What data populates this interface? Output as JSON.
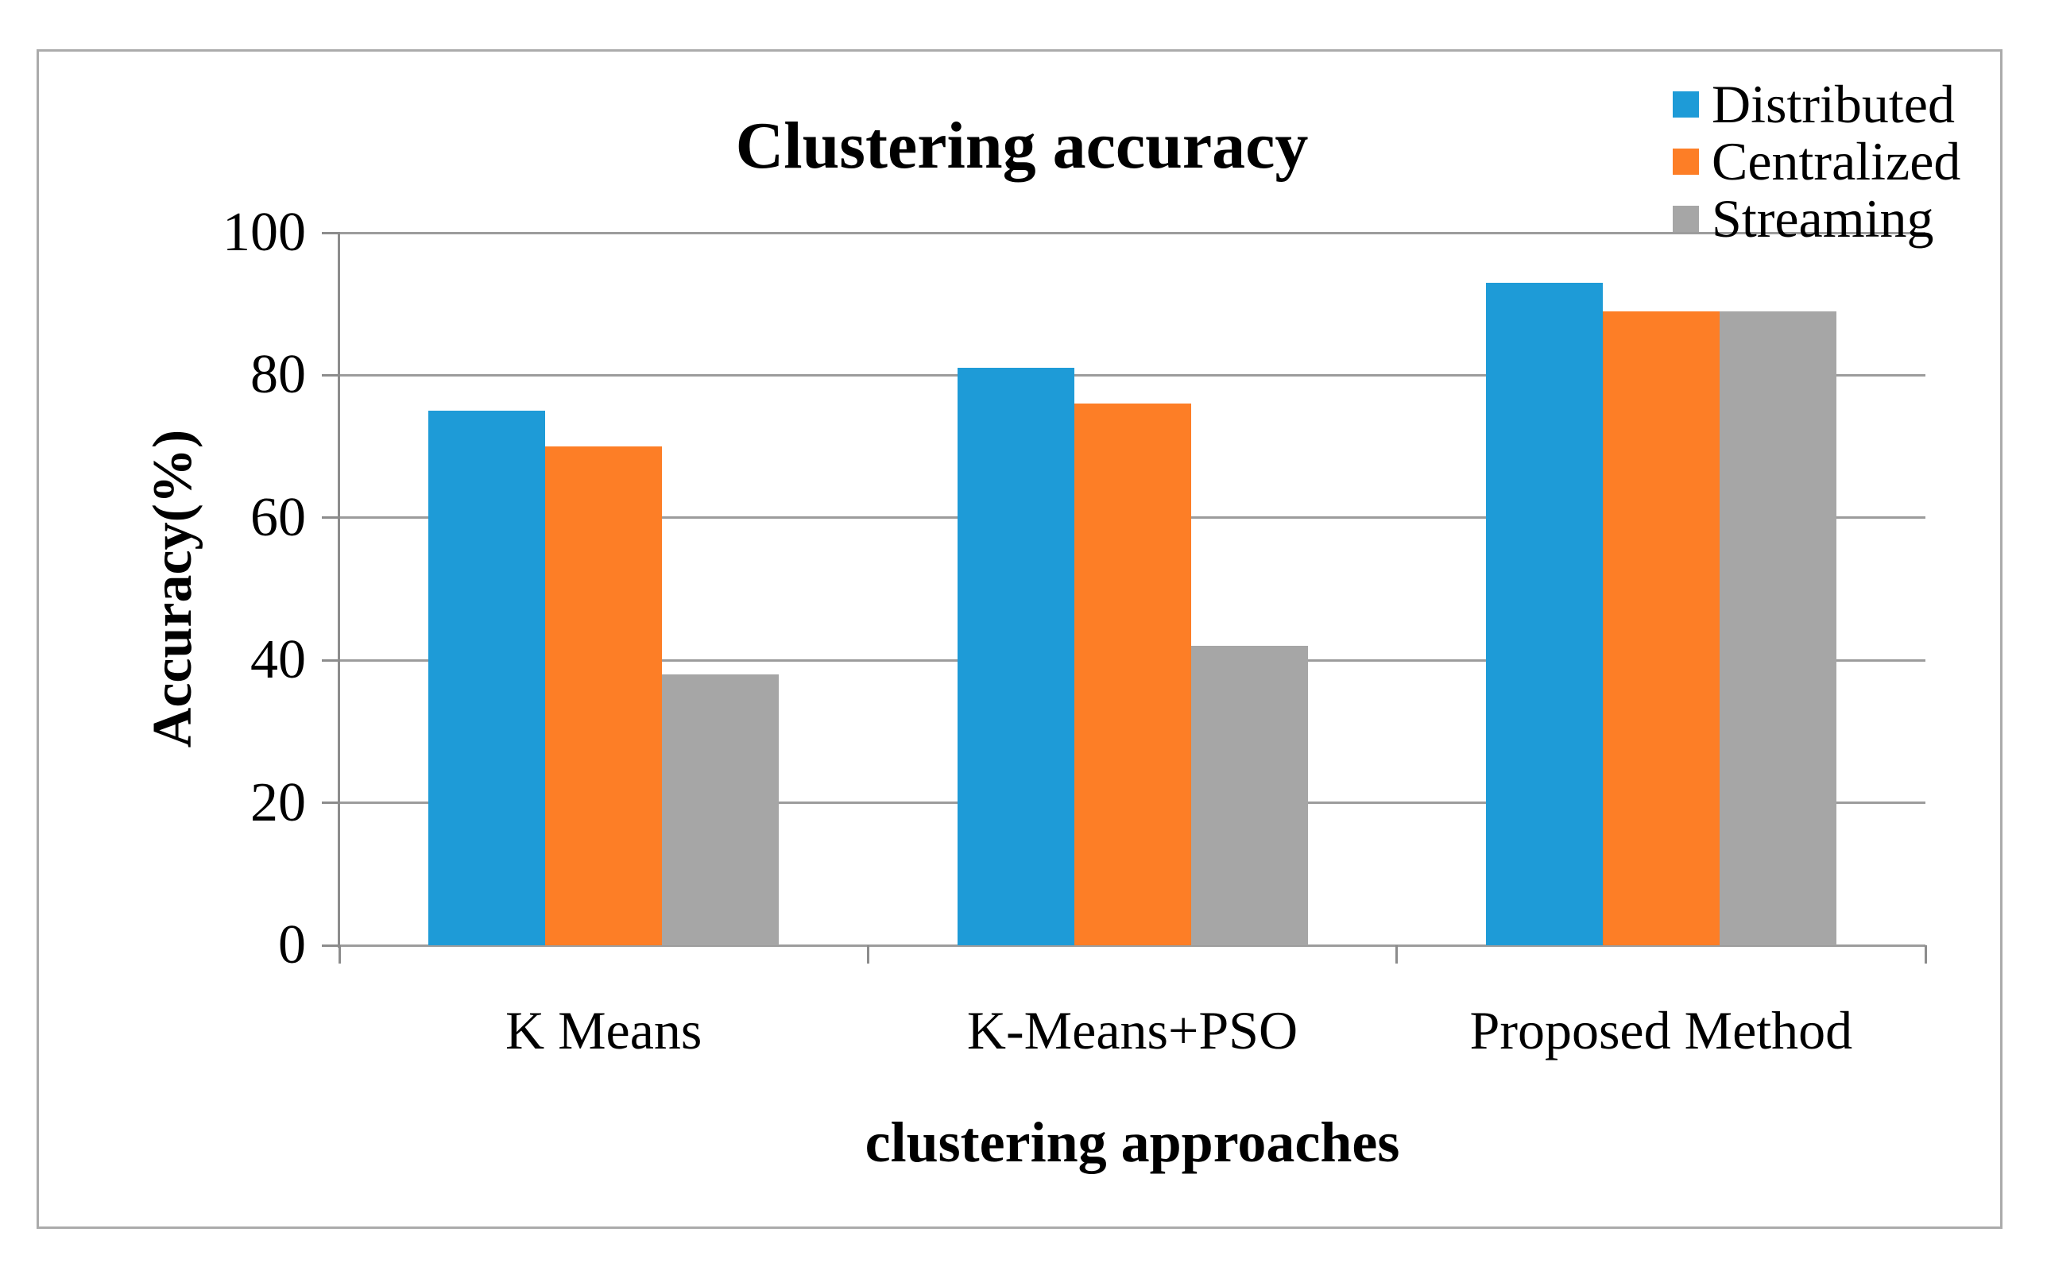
{
  "chart_data": {
    "type": "bar",
    "title": "Clustering accuracy",
    "xlabel": "clustering approaches",
    "ylabel": "Accuracy(%)",
    "categories": [
      "K Means",
      "K-Means+PSO",
      "Proposed Method"
    ],
    "series": [
      {
        "name": "Distributed",
        "color": "#1e9bd7",
        "values": [
          75,
          81,
          93
        ]
      },
      {
        "name": "Centralized",
        "color": "#fd7e26",
        "values": [
          70,
          76,
          89
        ]
      },
      {
        "name": "Streaming",
        "color": "#a6a6a6",
        "values": [
          38,
          42,
          89
        ]
      }
    ],
    "ylim": [
      0,
      100
    ],
    "yticks": [
      0,
      20,
      40,
      60,
      80,
      100
    ],
    "grid": true,
    "legend_position": "top-right"
  },
  "colors": {
    "grid": "#9c9c9c",
    "axis": "#8c8c8c",
    "border": "#ababab",
    "text": "#000000",
    "background": "#ffffff"
  }
}
